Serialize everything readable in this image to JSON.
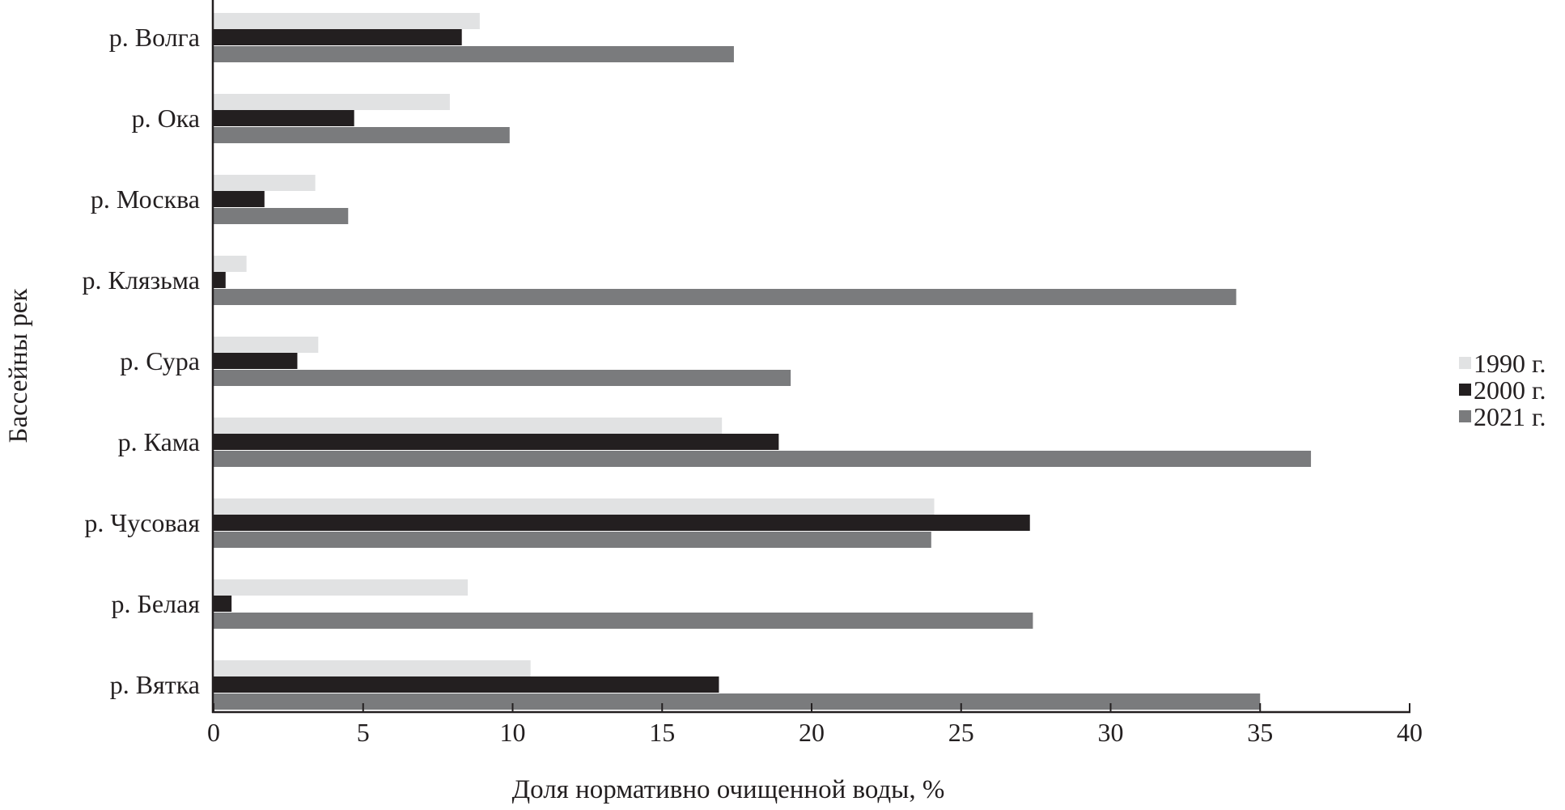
{
  "chart_data": {
    "type": "bar",
    "orientation": "horizontal",
    "title": "",
    "xlabel": "Доля нормативно очищенной воды, %",
    "ylabel": "Бассейны рек",
    "xlim": [
      0,
      40
    ],
    "xticks": [
      0,
      5,
      10,
      15,
      20,
      25,
      30,
      35,
      40
    ],
    "grid": false,
    "legend_position": "right",
    "categories": [
      "р. Волга",
      "р. Ока",
      "р. Москва",
      "р. Клязьма",
      "р. Сура",
      "р. Кама",
      "р. Чусовая",
      "р. Белая",
      "р. Вятка"
    ],
    "series": [
      {
        "name": "1990 г.",
        "color": "#e1e2e3",
        "values": [
          8.9,
          7.9,
          3.4,
          1.1,
          3.5,
          17.0,
          24.1,
          8.5,
          10.6
        ]
      },
      {
        "name": "2000 г.",
        "color": "#231f20",
        "values": [
          8.3,
          4.7,
          1.7,
          0.4,
          2.8,
          18.9,
          27.3,
          0.6,
          16.9
        ]
      },
      {
        "name": "2021 г.",
        "color": "#7a7b7d",
        "values": [
          17.4,
          9.9,
          4.5,
          34.2,
          19.3,
          36.7,
          24.0,
          27.4,
          35.0
        ]
      }
    ]
  }
}
